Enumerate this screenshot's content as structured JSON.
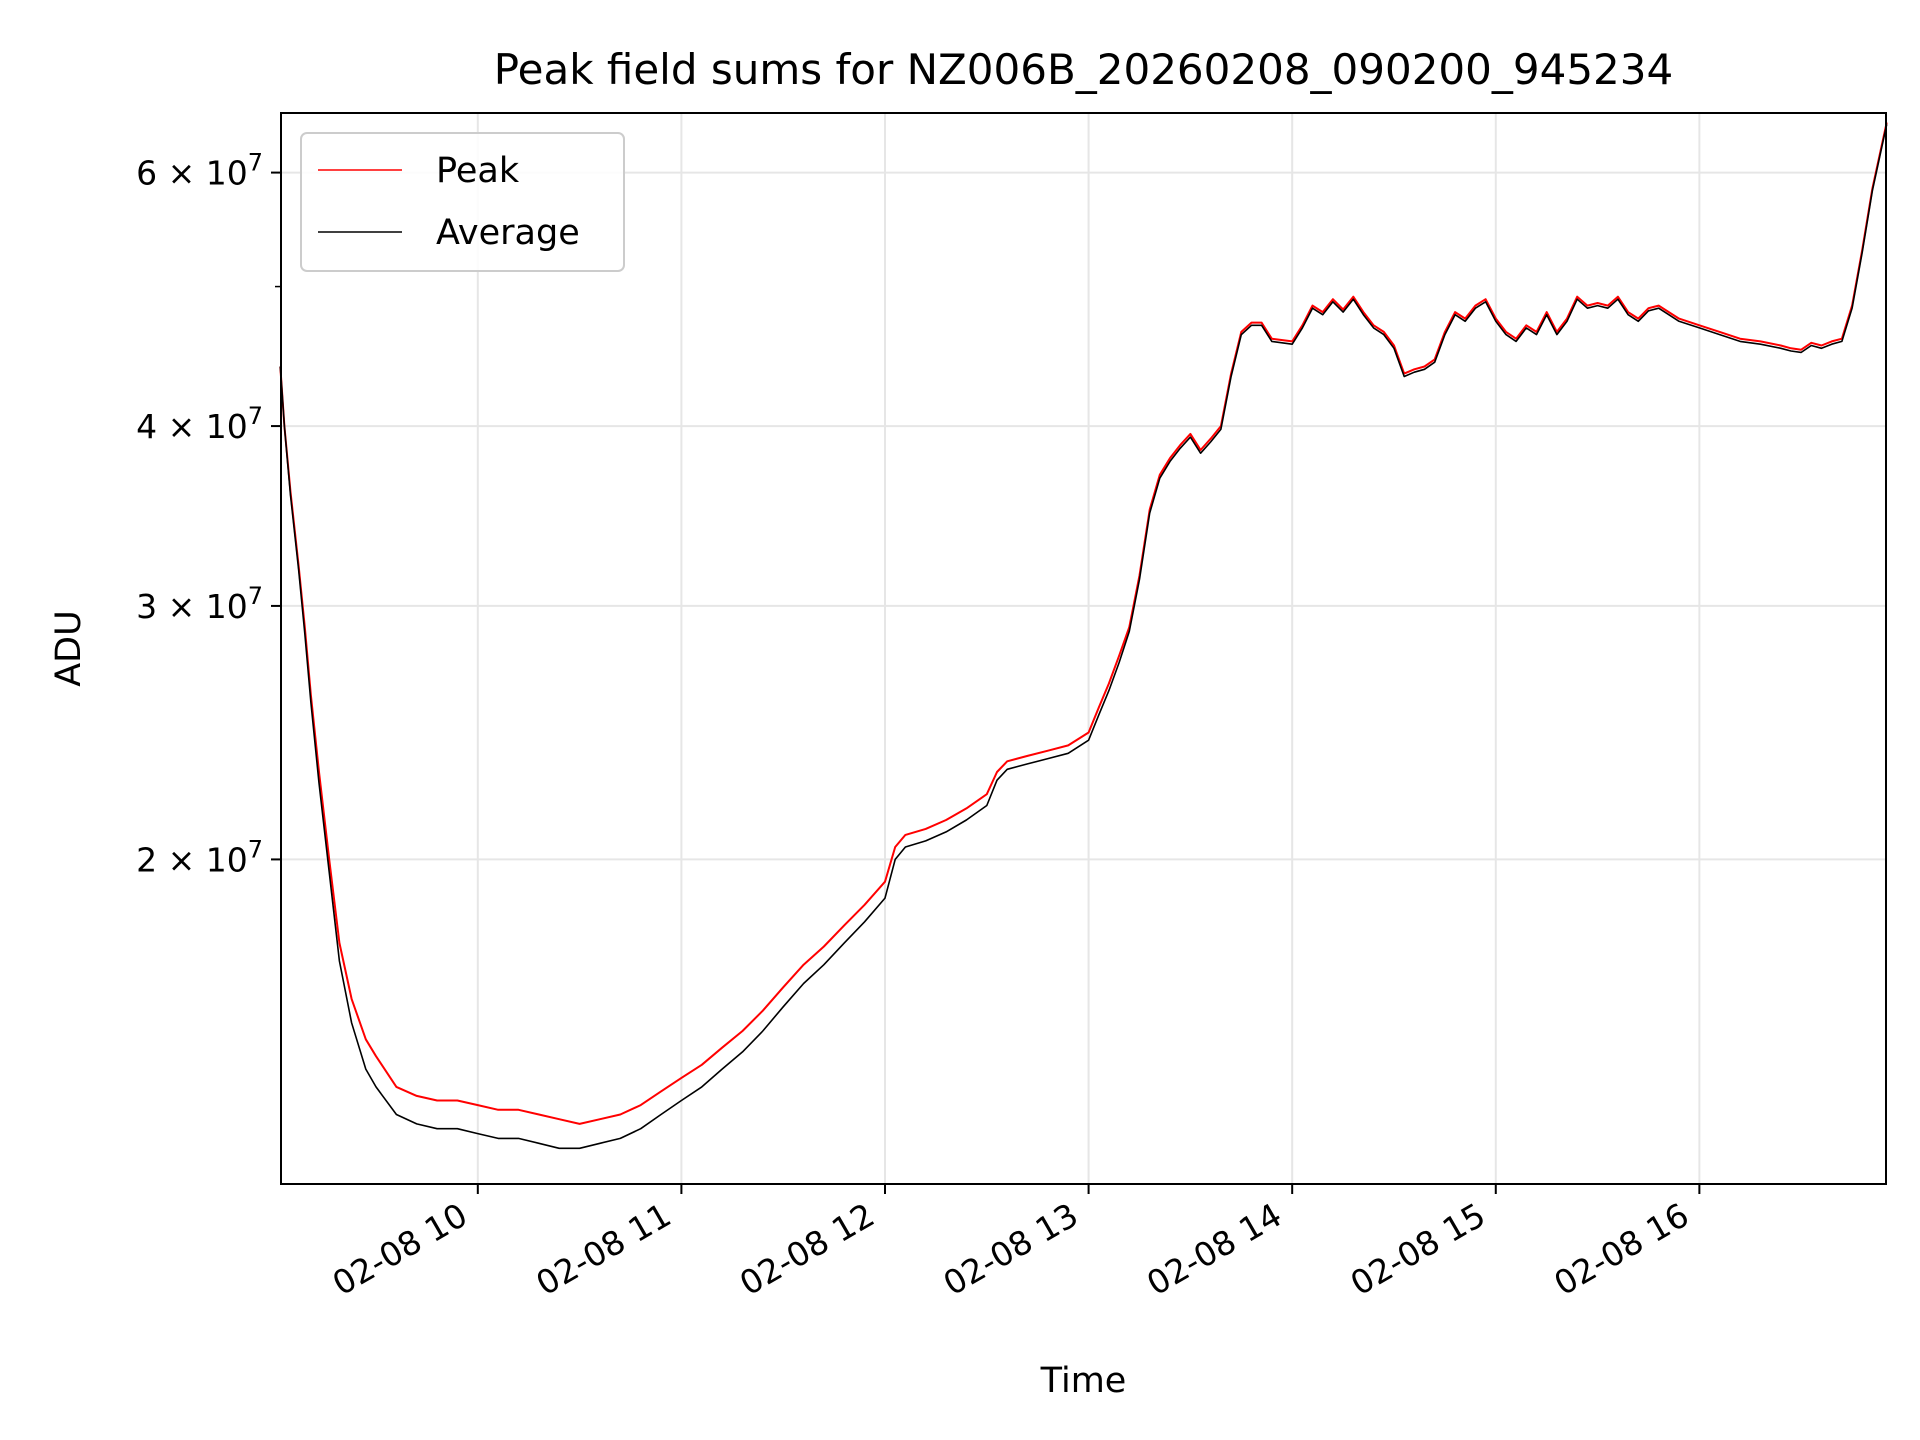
{
  "chart_data": {
    "type": "line",
    "title": "Peak field sums for NZ006B_20260208_090200_945234",
    "xlabel": "Time",
    "ylabel": "ADU",
    "x_unit": "hour of 2026-02-08",
    "x_range": [
      "2026-02-08 09:02",
      "2026-02-08 16:55"
    ],
    "ylim": [
      11900000,
      66000000
    ],
    "y_scale": "log",
    "grid": true,
    "legend_position": "top-left",
    "x_ticks": [
      {
        "value": 10,
        "label": "02-08 10"
      },
      {
        "value": 11,
        "label": "02-08 11"
      },
      {
        "value": 12,
        "label": "02-08 12"
      },
      {
        "value": 13,
        "label": "02-08 13"
      },
      {
        "value": 14,
        "label": "02-08 14"
      },
      {
        "value": 15,
        "label": "02-08 15"
      },
      {
        "value": 16,
        "label": "02-08 16"
      }
    ],
    "y_ticks": [
      {
        "value": 20000000,
        "base": "2 × 10",
        "exp": "7"
      },
      {
        "value": 30000000,
        "base": "3 × 10",
        "exp": "7"
      },
      {
        "value": 40000000,
        "base": "4 × 10",
        "exp": "7"
      },
      {
        "value": 60000000,
        "base": "6 × 10",
        "exp": "7"
      }
    ],
    "y_minor_ticks": [
      50000000
    ],
    "series": [
      {
        "name": "Peak",
        "color": "#ff0000",
        "x": [
          9.03,
          9.05,
          9.08,
          9.12,
          9.15,
          9.18,
          9.22,
          9.27,
          9.32,
          9.38,
          9.45,
          9.5,
          9.6,
          9.7,
          9.8,
          9.9,
          10.0,
          10.1,
          10.2,
          10.3,
          10.4,
          10.5,
          10.6,
          10.7,
          10.8,
          10.9,
          11.0,
          11.1,
          11.2,
          11.3,
          11.4,
          11.5,
          11.6,
          11.7,
          11.8,
          11.9,
          12.0,
          12.05,
          12.1,
          12.2,
          12.3,
          12.4,
          12.5,
          12.55,
          12.6,
          12.7,
          12.8,
          12.9,
          13.0,
          13.05,
          13.1,
          13.15,
          13.2,
          13.25,
          13.3,
          13.35,
          13.4,
          13.45,
          13.5,
          13.55,
          13.6,
          13.65,
          13.7,
          13.75,
          13.8,
          13.85,
          13.9,
          14.0,
          14.05,
          14.1,
          14.15,
          14.2,
          14.25,
          14.3,
          14.35,
          14.4,
          14.45,
          14.5,
          14.55,
          14.6,
          14.65,
          14.7,
          14.75,
          14.8,
          14.85,
          14.9,
          14.95,
          15.0,
          15.05,
          15.1,
          15.15,
          15.2,
          15.25,
          15.3,
          15.35,
          15.4,
          15.45,
          15.5,
          15.55,
          15.6,
          15.65,
          15.7,
          15.75,
          15.8,
          15.85,
          15.9,
          16.0,
          16.1,
          16.2,
          16.3,
          16.4,
          16.45,
          16.5,
          16.55,
          16.6,
          16.65,
          16.7,
          16.75,
          16.8,
          16.85,
          16.92
        ],
        "y": [
          44000000,
          40000000,
          36000000,
          32000000,
          29000000,
          26000000,
          23000000,
          20000000,
          17500000,
          16000000,
          15000000,
          14600000,
          13900000,
          13700000,
          13600000,
          13600000,
          13500000,
          13400000,
          13400000,
          13300000,
          13200000,
          13100000,
          13200000,
          13300000,
          13500000,
          13800000,
          14100000,
          14400000,
          14800000,
          15200000,
          15700000,
          16300000,
          16900000,
          17400000,
          18000000,
          18600000,
          19300000,
          20400000,
          20800000,
          21000000,
          21300000,
          21700000,
          22200000,
          23000000,
          23400000,
          23600000,
          23800000,
          24000000,
          24500000,
          25500000,
          26500000,
          27700000,
          29000000,
          31500000,
          35000000,
          37000000,
          38000000,
          38800000,
          39500000,
          38500000,
          39200000,
          40000000,
          43500000,
          46500000,
          47200000,
          47200000,
          46000000,
          45800000,
          47000000,
          48500000,
          48000000,
          49000000,
          48200000,
          49200000,
          48000000,
          47000000,
          46500000,
          45500000,
          43500000,
          43800000,
          44000000,
          44500000,
          46500000,
          48000000,
          47500000,
          48500000,
          49000000,
          47500000,
          46500000,
          46000000,
          47000000,
          46500000,
          48000000,
          46500000,
          47500000,
          49200000,
          48500000,
          48700000,
          48500000,
          49200000,
          48000000,
          47500000,
          48300000,
          48500000,
          48000000,
          47500000,
          47000000,
          46500000,
          46000000,
          45800000,
          45500000,
          45300000,
          45200000,
          45700000,
          45500000,
          45800000,
          46000000,
          48500000,
          53000000,
          58500000,
          65000000
        ]
      },
      {
        "name": "Average",
        "color": "#000000",
        "x": [
          9.03,
          9.05,
          9.08,
          9.12,
          9.15,
          9.18,
          9.22,
          9.27,
          9.32,
          9.38,
          9.45,
          9.5,
          9.6,
          9.7,
          9.8,
          9.9,
          10.0,
          10.1,
          10.2,
          10.3,
          10.4,
          10.5,
          10.6,
          10.7,
          10.8,
          10.9,
          11.0,
          11.1,
          11.2,
          11.3,
          11.4,
          11.5,
          11.6,
          11.7,
          11.8,
          11.9,
          12.0,
          12.05,
          12.1,
          12.2,
          12.3,
          12.4,
          12.5,
          12.55,
          12.6,
          12.7,
          12.8,
          12.9,
          13.0,
          13.05,
          13.1,
          13.15,
          13.2,
          13.25,
          13.3,
          13.35,
          13.4,
          13.45,
          13.5,
          13.55,
          13.6,
          13.65,
          13.7,
          13.75,
          13.8,
          13.85,
          13.9,
          14.0,
          14.05,
          14.1,
          14.15,
          14.2,
          14.25,
          14.3,
          14.35,
          14.4,
          14.45,
          14.5,
          14.55,
          14.6,
          14.65,
          14.7,
          14.75,
          14.8,
          14.85,
          14.9,
          14.95,
          15.0,
          15.05,
          15.1,
          15.15,
          15.2,
          15.25,
          15.3,
          15.35,
          15.4,
          15.45,
          15.5,
          15.55,
          15.6,
          15.65,
          15.7,
          15.75,
          15.8,
          15.85,
          15.9,
          16.0,
          16.1,
          16.2,
          16.3,
          16.4,
          16.45,
          16.5,
          16.55,
          16.6,
          16.65,
          16.7,
          16.75,
          16.8,
          16.85,
          16.92
        ],
        "y": [
          44000000,
          40000000,
          35800000,
          31800000,
          28700000,
          25700000,
          22600000,
          19600000,
          17000000,
          15400000,
          14300000,
          13900000,
          13300000,
          13100000,
          13000000,
          13000000,
          12900000,
          12800000,
          12800000,
          12700000,
          12600000,
          12600000,
          12700000,
          12800000,
          13000000,
          13300000,
          13600000,
          13900000,
          14300000,
          14700000,
          15200000,
          15800000,
          16400000,
          16900000,
          17500000,
          18100000,
          18800000,
          20000000,
          20400000,
          20600000,
          20900000,
          21300000,
          21800000,
          22700000,
          23100000,
          23300000,
          23500000,
          23700000,
          24200000,
          25200000,
          26200000,
          27400000,
          28800000,
          31300000,
          34800000,
          36800000,
          37800000,
          38600000,
          39300000,
          38300000,
          39000000,
          39800000,
          43300000,
          46300000,
          47000000,
          47000000,
          45800000,
          45600000,
          46800000,
          48300000,
          47800000,
          48800000,
          48000000,
          49000000,
          47800000,
          46800000,
          46300000,
          45300000,
          43300000,
          43600000,
          43800000,
          44300000,
          46300000,
          47800000,
          47300000,
          48300000,
          48800000,
          47300000,
          46300000,
          45800000,
          46800000,
          46300000,
          47800000,
          46300000,
          47300000,
          49000000,
          48300000,
          48500000,
          48300000,
          49000000,
          47800000,
          47300000,
          48100000,
          48300000,
          47800000,
          47300000,
          46800000,
          46300000,
          45800000,
          45600000,
          45300000,
          45100000,
          45000000,
          45500000,
          45300000,
          45600000,
          45800000,
          48300000,
          52800000,
          58300000,
          64800000
        ]
      }
    ]
  }
}
